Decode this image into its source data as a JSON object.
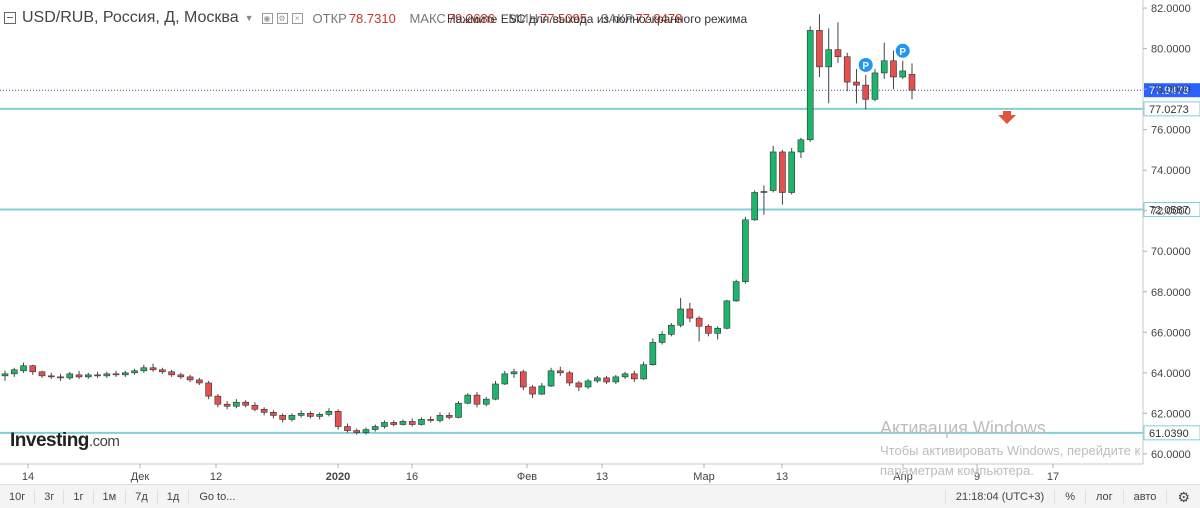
{
  "legend": {
    "symbol": "USD/RUB, Россия, Д, Москва",
    "open_label": "ОТКР",
    "open_value": "78.7310",
    "high_label": "МАКС",
    "high_value": "79.2686",
    "low_label": "МИН",
    "low_value": "77.5095",
    "close_label": "ЗАКР",
    "close_value": "77.9478"
  },
  "notice": "Нажмите ESC для выхода из полноэкранного режима",
  "logo": {
    "main": "Investing",
    "domain": ".com"
  },
  "watermark": {
    "line1": "Активация Windows",
    "line2": "Чтобы активировать Windows, перейдите к",
    "line3": "параметрам компьютера."
  },
  "bottombar": {
    "ranges": [
      "10г",
      "3г",
      "1г",
      "1м",
      "7д",
      "1д"
    ],
    "goto": "Go to...",
    "time": "21:18:04 (UTC+3)",
    "percent": "%",
    "log": "лог",
    "auto": "авто"
  },
  "colors": {
    "up": "#1db56b",
    "down": "#e3504f",
    "level_line": "#7fd0d8",
    "price_tag": "#2962ff",
    "arrow": "#e0533c",
    "marker": "#2196f3"
  },
  "chart_data": {
    "type": "candlestick",
    "ylim": [
      59.5,
      82.4
    ],
    "y_ticks": [
      "82.0000",
      "80.0000",
      "78.0000",
      "76.0000",
      "74.0000",
      "72.0000",
      "70.0000",
      "68.0000",
      "66.0000",
      "64.0000",
      "62.0000",
      "60.0000"
    ],
    "x_ticks": [
      "14",
      "Дек",
      "12",
      "2020",
      "16",
      "Фев",
      "13",
      "Мар",
      "13",
      "Апр",
      "9",
      "17"
    ],
    "current_price": "77.9478",
    "levels": [
      {
        "value": 77.0273,
        "label": "77.0273"
      },
      {
        "value": 72.0587,
        "label": "72.0587"
      },
      {
        "value": 61.039,
        "label": "61.0390"
      }
    ],
    "markers": [
      "P",
      "P"
    ],
    "candles": [
      [
        63.85,
        64.1,
        63.6,
        63.95
      ],
      [
        63.95,
        64.25,
        63.8,
        64.15
      ],
      [
        64.1,
        64.5,
        64.0,
        64.35
      ],
      [
        64.35,
        64.4,
        63.9,
        64.05
      ],
      [
        64.05,
        64.1,
        63.75,
        63.85
      ],
      [
        63.85,
        64.0,
        63.7,
        63.8
      ],
      [
        63.8,
        63.95,
        63.6,
        63.75
      ],
      [
        63.75,
        64.05,
        63.65,
        63.95
      ],
      [
        63.9,
        64.1,
        63.7,
        63.8
      ],
      [
        63.8,
        64.0,
        63.7,
        63.9
      ],
      [
        63.9,
        64.05,
        63.75,
        63.85
      ],
      [
        63.85,
        64.05,
        63.75,
        63.95
      ],
      [
        63.95,
        64.1,
        63.8,
        63.9
      ],
      [
        63.9,
        64.1,
        63.8,
        64.0
      ],
      [
        64.0,
        64.2,
        63.9,
        64.1
      ],
      [
        64.1,
        64.4,
        64.0,
        64.25
      ],
      [
        64.25,
        64.45,
        64.05,
        64.15
      ],
      [
        64.15,
        64.25,
        63.95,
        64.05
      ],
      [
        64.05,
        64.15,
        63.8,
        63.9
      ],
      [
        63.9,
        64.0,
        63.7,
        63.8
      ],
      [
        63.8,
        63.9,
        63.55,
        63.65
      ],
      [
        63.65,
        63.75,
        63.4,
        63.5
      ],
      [
        63.5,
        63.6,
        62.7,
        62.85
      ],
      [
        62.85,
        62.95,
        62.3,
        62.45
      ],
      [
        62.45,
        62.6,
        62.2,
        62.35
      ],
      [
        62.35,
        62.7,
        62.25,
        62.55
      ],
      [
        62.55,
        62.65,
        62.3,
        62.4
      ],
      [
        62.4,
        62.55,
        62.1,
        62.2
      ],
      [
        62.2,
        62.3,
        61.9,
        62.05
      ],
      [
        62.05,
        62.15,
        61.75,
        61.9
      ],
      [
        61.9,
        62.0,
        61.55,
        61.7
      ],
      [
        61.7,
        62.0,
        61.6,
        61.9
      ],
      [
        61.9,
        62.15,
        61.8,
        62.0
      ],
      [
        62.0,
        62.1,
        61.75,
        61.85
      ],
      [
        61.85,
        62.05,
        61.7,
        61.95
      ],
      [
        61.95,
        62.25,
        61.85,
        62.1
      ],
      [
        62.1,
        62.2,
        61.2,
        61.35
      ],
      [
        61.35,
        61.5,
        61.05,
        61.15
      ],
      [
        61.15,
        61.25,
        60.95,
        61.05
      ],
      [
        61.05,
        61.3,
        60.95,
        61.2
      ],
      [
        61.2,
        61.45,
        61.1,
        61.35
      ],
      [
        61.35,
        61.65,
        61.25,
        61.55
      ],
      [
        61.55,
        61.65,
        61.35,
        61.45
      ],
      [
        61.45,
        61.7,
        61.4,
        61.6
      ],
      [
        61.6,
        61.75,
        61.35,
        61.45
      ],
      [
        61.45,
        61.8,
        61.4,
        61.7
      ],
      [
        61.7,
        61.85,
        61.55,
        61.65
      ],
      [
        61.65,
        62.05,
        61.55,
        61.9
      ],
      [
        61.9,
        62.05,
        61.7,
        61.8
      ],
      [
        61.8,
        62.6,
        61.75,
        62.5
      ],
      [
        62.5,
        63.0,
        62.45,
        62.9
      ],
      [
        62.9,
        63.05,
        62.3,
        62.45
      ],
      [
        62.45,
        62.8,
        62.35,
        62.7
      ],
      [
        62.7,
        63.6,
        62.65,
        63.45
      ],
      [
        63.45,
        64.1,
        63.4,
        63.95
      ],
      [
        63.95,
        64.2,
        63.75,
        64.05
      ],
      [
        64.05,
        64.15,
        63.15,
        63.3
      ],
      [
        63.3,
        63.4,
        62.75,
        62.95
      ],
      [
        62.95,
        63.5,
        62.9,
        63.35
      ],
      [
        63.35,
        64.25,
        63.3,
        64.1
      ],
      [
        64.1,
        64.3,
        63.85,
        64.0
      ],
      [
        64.0,
        64.1,
        63.35,
        63.5
      ],
      [
        63.5,
        63.6,
        63.1,
        63.3
      ],
      [
        63.3,
        63.7,
        63.2,
        63.6
      ],
      [
        63.6,
        63.85,
        63.5,
        63.75
      ],
      [
        63.75,
        63.85,
        63.45,
        63.55
      ],
      [
        63.55,
        63.9,
        63.45,
        63.8
      ],
      [
        63.8,
        64.05,
        63.7,
        63.95
      ],
      [
        63.95,
        64.1,
        63.55,
        63.7
      ],
      [
        63.7,
        64.55,
        63.65,
        64.4
      ],
      [
        64.4,
        65.7,
        64.35,
        65.5
      ],
      [
        65.5,
        66.05,
        65.4,
        65.9
      ],
      [
        65.9,
        66.45,
        65.8,
        66.35
      ],
      [
        66.35,
        67.7,
        66.25,
        67.15
      ],
      [
        67.15,
        67.45,
        66.5,
        66.7
      ],
      [
        66.7,
        66.8,
        65.55,
        66.3
      ],
      [
        66.3,
        66.4,
        65.8,
        65.95
      ],
      [
        65.95,
        66.3,
        65.65,
        66.2
      ],
      [
        66.2,
        67.6,
        66.15,
        67.55
      ],
      [
        67.55,
        68.6,
        67.5,
        68.5
      ],
      [
        68.5,
        71.7,
        68.4,
        71.55
      ],
      [
        71.55,
        73.0,
        71.5,
        72.9
      ],
      [
        72.9,
        73.25,
        71.8,
        72.95
      ],
      [
        73.0,
        75.2,
        72.9,
        74.9
      ],
      [
        74.9,
        75.0,
        72.3,
        72.9
      ],
      [
        72.9,
        75.1,
        72.8,
        74.9
      ],
      [
        74.9,
        75.6,
        74.6,
        75.5
      ],
      [
        75.5,
        81.1,
        75.4,
        80.9
      ],
      [
        80.9,
        81.7,
        78.6,
        79.1
      ],
      [
        79.1,
        81.0,
        77.3,
        79.95
      ],
      [
        79.95,
        81.3,
        79.3,
        79.6
      ],
      [
        79.6,
        79.8,
        77.9,
        78.35
      ],
      [
        78.35,
        79.0,
        77.3,
        78.2
      ],
      [
        78.2,
        78.7,
        77.0,
        77.5
      ],
      [
        77.5,
        79.0,
        77.4,
        78.8
      ],
      [
        78.8,
        80.3,
        78.5,
        79.4
      ],
      [
        79.4,
        79.9,
        78.0,
        78.6
      ],
      [
        78.6,
        79.4,
        78.5,
        78.9
      ],
      [
        78.73,
        79.27,
        77.51,
        77.95
      ]
    ]
  }
}
